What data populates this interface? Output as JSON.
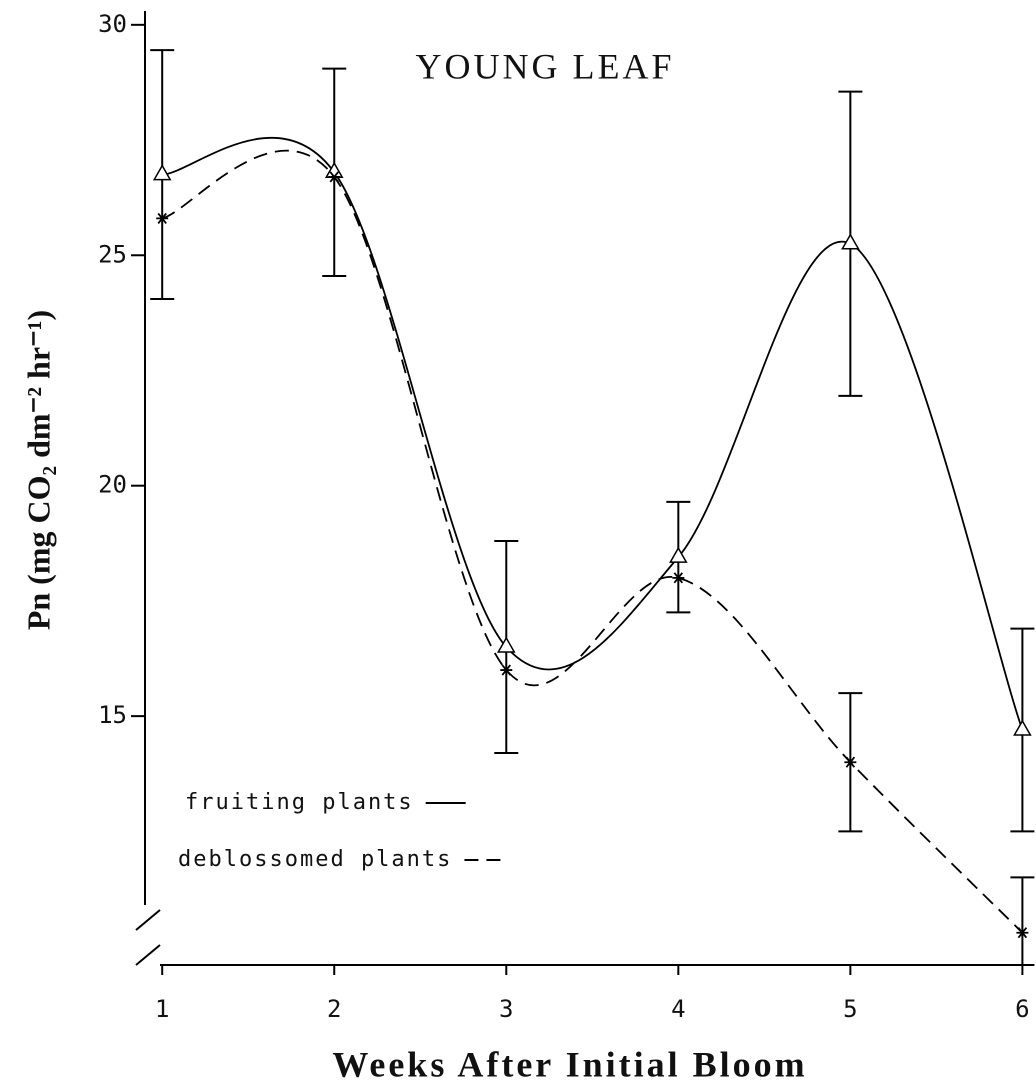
{
  "chart_data": {
    "type": "line",
    "title": "YOUNG LEAF",
    "xlabel": "Weeks After Initial Bloom",
    "ylabel": "Pn (mg CO₂ dm⁻² hr⁻¹)",
    "x": [
      1,
      2,
      3,
      4,
      5,
      6
    ],
    "xlim": [
      0.9,
      6.05
    ],
    "xticks": [
      1,
      2,
      3,
      4,
      5,
      6
    ],
    "ylim": [
      9.6,
      30.3
    ],
    "yticks": [
      15,
      20,
      25,
      30
    ],
    "series": [
      {
        "name": "fruiting plants",
        "color": "#000000",
        "dash": "solid",
        "marker": "triangle",
        "values": [
          26.75,
          26.8,
          16.5,
          18.45,
          25.25,
          14.7
        ],
        "errors": [
          2.7,
          2.25,
          2.3,
          1.2,
          3.3,
          2.2
        ]
      },
      {
        "name": "deblossomed plants",
        "color": "#000000",
        "dash": "dashed",
        "marker": "asterisk",
        "values": [
          25.8,
          26.7,
          16.0,
          18.0,
          14.0,
          10.3
        ],
        "errors": [
          null,
          null,
          null,
          null,
          1.5,
          1.2
        ]
      }
    ]
  }
}
